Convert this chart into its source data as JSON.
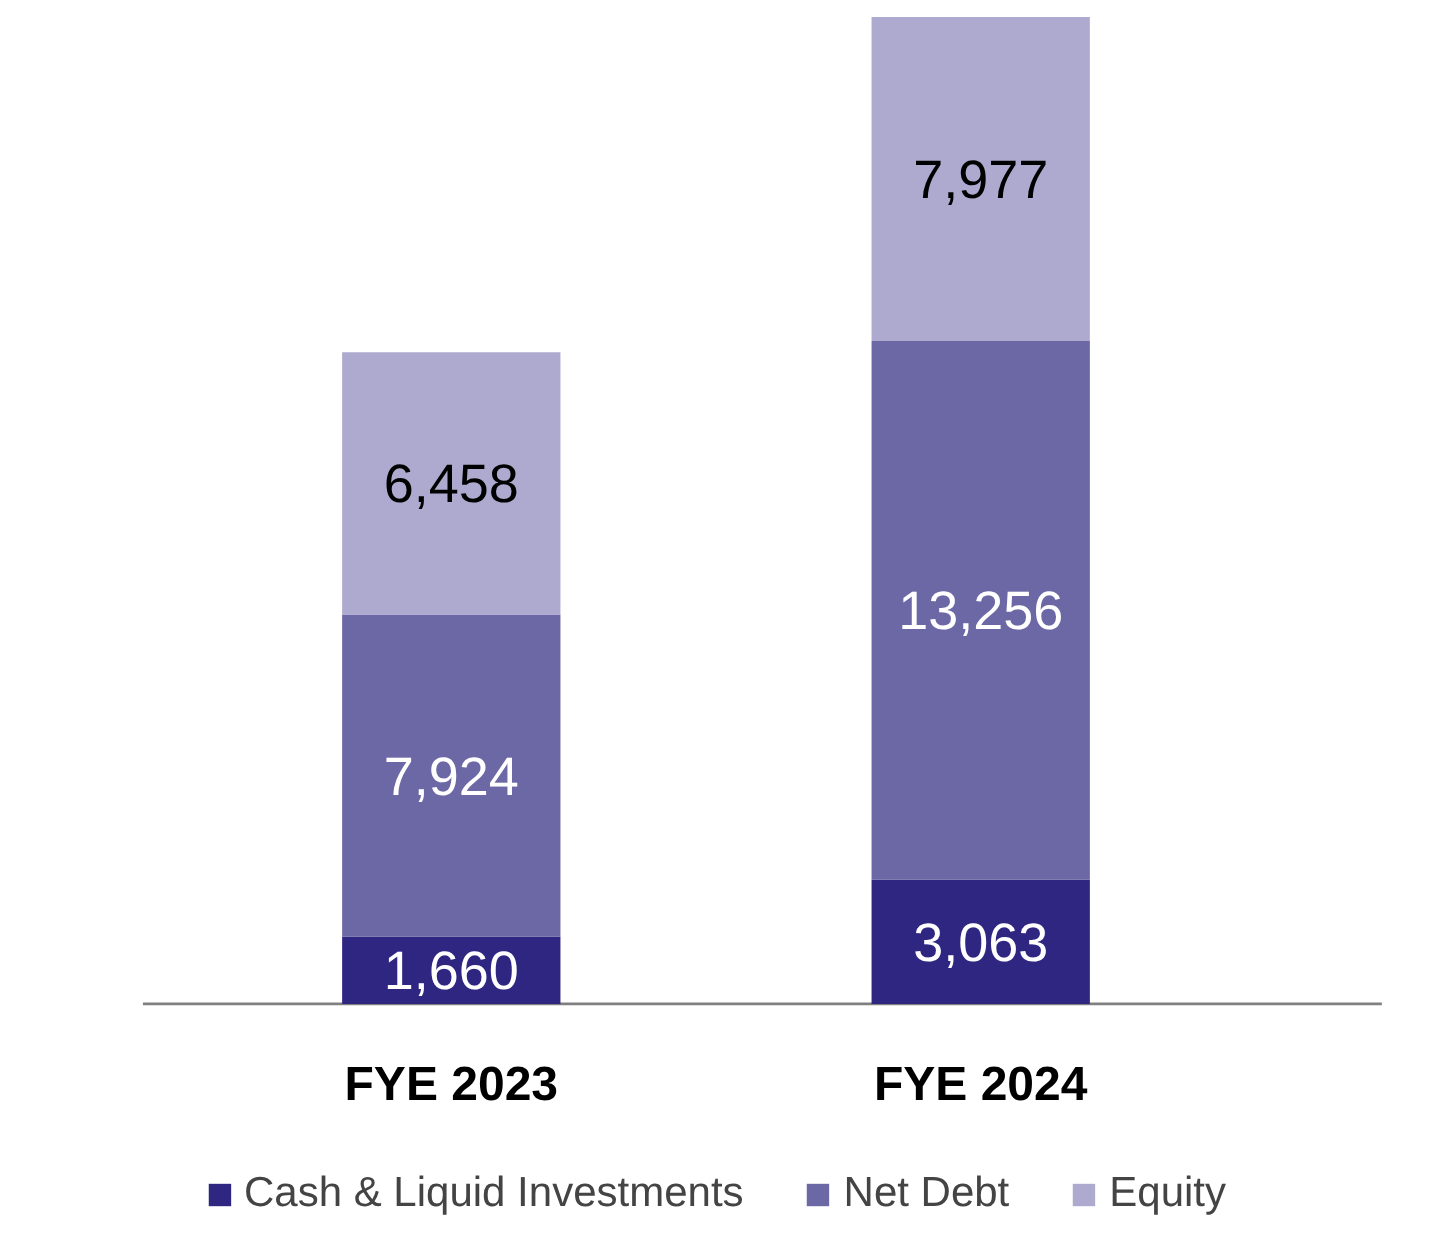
{
  "chart_data": {
    "type": "bar",
    "stacked": true,
    "categories": [
      "FYE 2023",
      "FYE 2024"
    ],
    "legend": "bottom",
    "grid": false,
    "series": [
      {
        "name": "Cash & Liquid Investments",
        "color": "#2e2680",
        "values": [
          1660,
          3063
        ],
        "value_labels": [
          "1,660",
          "3,063"
        ]
      },
      {
        "name": "Net Debt",
        "color": "#6c67a5",
        "values": [
          7924,
          13256
        ],
        "value_labels": [
          "7,924",
          "13,256"
        ]
      },
      {
        "name": "Equity",
        "color": "#aeaacf",
        "values": [
          6458,
          7977
        ],
        "value_labels": [
          "6,458",
          "7,977"
        ]
      }
    ]
  }
}
